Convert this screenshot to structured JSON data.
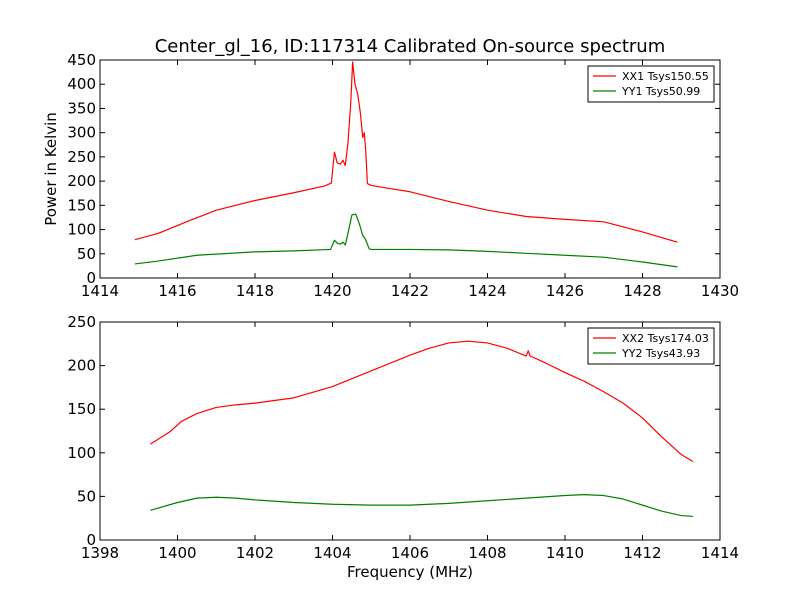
{
  "chart_data": [
    {
      "type": "line",
      "title": "Center_gl_16, ID:117314 Calibrated On-source spectrum",
      "xlabel": "",
      "ylabel": "Power in Kelvin",
      "xlim": [
        1414,
        1430
      ],
      "ylim": [
        0,
        450
      ],
      "xticks": [
        1414,
        1416,
        1418,
        1420,
        1422,
        1424,
        1426,
        1428,
        1430
      ],
      "yticks": [
        0,
        50,
        100,
        150,
        200,
        250,
        300,
        350,
        400,
        450
      ],
      "legend_position": "top-right",
      "grid": false,
      "series": [
        {
          "name": "XX1 Tsys150.55",
          "color": "#ff0000",
          "points": [
            [
              1414.9,
              79
            ],
            [
              1415.5,
              92
            ],
            [
              1416.2,
              115
            ],
            [
              1417.0,
              140
            ],
            [
              1418.0,
              160
            ],
            [
              1419.0,
              176
            ],
            [
              1419.8,
              190
            ],
            [
              1419.97,
              196
            ],
            [
              1420.05,
              260
            ],
            [
              1420.12,
              238
            ],
            [
              1420.2,
              235
            ],
            [
              1420.27,
              243
            ],
            [
              1420.33,
              232
            ],
            [
              1420.4,
              280
            ],
            [
              1420.47,
              360
            ],
            [
              1420.52,
              446
            ],
            [
              1420.58,
              400
            ],
            [
              1420.65,
              380
            ],
            [
              1420.72,
              340
            ],
            [
              1420.78,
              290
            ],
            [
              1420.82,
              300
            ],
            [
              1420.86,
              260
            ],
            [
              1420.9,
              195
            ],
            [
              1421.0,
              191
            ],
            [
              1422.0,
              178
            ],
            [
              1423.0,
              158
            ],
            [
              1424.0,
              140
            ],
            [
              1425.0,
              127
            ],
            [
              1426.0,
              121
            ],
            [
              1427.0,
              116
            ],
            [
              1428.0,
              95
            ],
            [
              1428.9,
              74
            ]
          ]
        },
        {
          "name": "YY1 Tsys50.99",
          "color": "#008000",
          "points": [
            [
              1414.9,
              29
            ],
            [
              1415.5,
              35
            ],
            [
              1416.5,
              47
            ],
            [
              1418.0,
              54
            ],
            [
              1419.0,
              56
            ],
            [
              1419.95,
              59
            ],
            [
              1420.05,
              78
            ],
            [
              1420.12,
              72
            ],
            [
              1420.2,
              70
            ],
            [
              1420.27,
              74
            ],
            [
              1420.33,
              68
            ],
            [
              1420.42,
              100
            ],
            [
              1420.5,
              130
            ],
            [
              1420.6,
              132
            ],
            [
              1420.7,
              110
            ],
            [
              1420.78,
              88
            ],
            [
              1420.85,
              80
            ],
            [
              1420.95,
              60
            ],
            [
              1421.0,
              59
            ],
            [
              1422.0,
              59
            ],
            [
              1423.0,
              58
            ],
            [
              1424.0,
              55
            ],
            [
              1425.0,
              51
            ],
            [
              1426.0,
              47
            ],
            [
              1427.0,
              43
            ],
            [
              1428.0,
              33
            ],
            [
              1428.9,
              23
            ]
          ]
        }
      ]
    },
    {
      "type": "line",
      "title": "",
      "xlabel": "Frequency (MHz)",
      "ylabel": "",
      "xlim": [
        1398,
        1414
      ],
      "ylim": [
        0,
        250
      ],
      "xticks": [
        1398,
        1400,
        1402,
        1404,
        1406,
        1408,
        1410,
        1412,
        1414
      ],
      "yticks": [
        0,
        50,
        100,
        150,
        200,
        250
      ],
      "legend_position": "top-right",
      "grid": false,
      "series": [
        {
          "name": "XX2 Tsys174.03",
          "color": "#ff0000",
          "points": [
            [
              1399.3,
              110
            ],
            [
              1399.8,
              124
            ],
            [
              1400.1,
              136
            ],
            [
              1400.5,
              145
            ],
            [
              1401.0,
              152
            ],
            [
              1401.5,
              155
            ],
            [
              1402.0,
              157
            ],
            [
              1403.0,
              163
            ],
            [
              1404.0,
              176
            ],
            [
              1405.0,
              194
            ],
            [
              1406.0,
              212
            ],
            [
              1406.5,
              220
            ],
            [
              1407.0,
              226
            ],
            [
              1407.5,
              228
            ],
            [
              1408.0,
              226
            ],
            [
              1408.5,
              220
            ],
            [
              1409.0,
              211
            ],
            [
              1409.05,
              217
            ],
            [
              1409.1,
              211
            ],
            [
              1409.5,
              203
            ],
            [
              1410.0,
              192
            ],
            [
              1410.5,
              182
            ],
            [
              1411.0,
              170
            ],
            [
              1411.5,
              157
            ],
            [
              1412.0,
              140
            ],
            [
              1412.5,
              118
            ],
            [
              1413.0,
              98
            ],
            [
              1413.3,
              90
            ]
          ]
        },
        {
          "name": "YY2 Tsys43.93",
          "color": "#008000",
          "points": [
            [
              1399.3,
              34
            ],
            [
              1400.0,
              43
            ],
            [
              1400.5,
              48
            ],
            [
              1401.0,
              49
            ],
            [
              1401.5,
              48
            ],
            [
              1402.0,
              46
            ],
            [
              1403.0,
              43
            ],
            [
              1404.0,
              41
            ],
            [
              1405.0,
              40
            ],
            [
              1406.0,
              40
            ],
            [
              1407.0,
              42
            ],
            [
              1408.0,
              45
            ],
            [
              1409.0,
              48
            ],
            [
              1410.0,
              51
            ],
            [
              1410.5,
              52
            ],
            [
              1411.0,
              51
            ],
            [
              1411.5,
              47
            ],
            [
              1412.0,
              40
            ],
            [
              1412.5,
              33
            ],
            [
              1413.0,
              28
            ],
            [
              1413.3,
              27
            ]
          ]
        }
      ]
    }
  ]
}
